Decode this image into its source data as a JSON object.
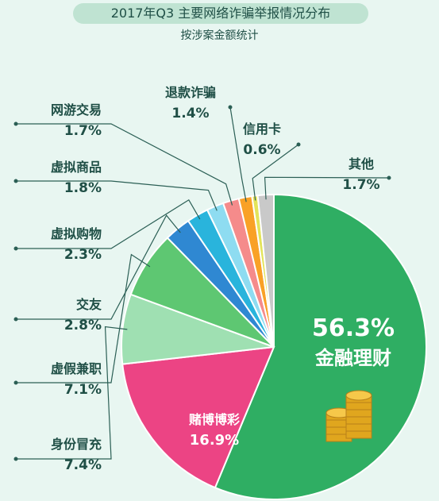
{
  "chart_data": {
    "type": "pie",
    "title": "2017年Q3  主要网络诈骗举报情况分布",
    "subtitle": "按涉案金额统计",
    "slices": [
      {
        "label": "金融理财",
        "value": 56.3,
        "display": "56.3%",
        "color": "#2fae63"
      },
      {
        "label": "赌博博彩",
        "value": 16.9,
        "display": "16.9%",
        "color": "#ec4484"
      },
      {
        "label": "身份冒充",
        "value": 7.4,
        "display": "7.4%",
        "color": "#9fe0b2"
      },
      {
        "label": "虚假兼职",
        "value": 7.1,
        "display": "7.1%",
        "color": "#5ec772"
      },
      {
        "label": "交友",
        "value": 2.8,
        "display": "2.8%",
        "color": "#2f88d2"
      },
      {
        "label": "虚拟购物",
        "value": 2.3,
        "display": "2.3%",
        "color": "#29b4dc"
      },
      {
        "label": "虚拟商品",
        "value": 1.8,
        "display": "1.8%",
        "color": "#8edcf1"
      },
      {
        "label": "网游交易",
        "value": 1.7,
        "display": "1.7%",
        "color": "#f58b8b"
      },
      {
        "label": "退款诈骗",
        "value": 1.4,
        "display": "1.4%",
        "color": "#f9a126"
      },
      {
        "label": "信用卡",
        "value": 0.6,
        "display": "0.6%",
        "color": "#e3e45a"
      },
      {
        "label": "其他",
        "value": 1.7,
        "display": "1.7%",
        "color": "#c9c9c9"
      }
    ]
  }
}
